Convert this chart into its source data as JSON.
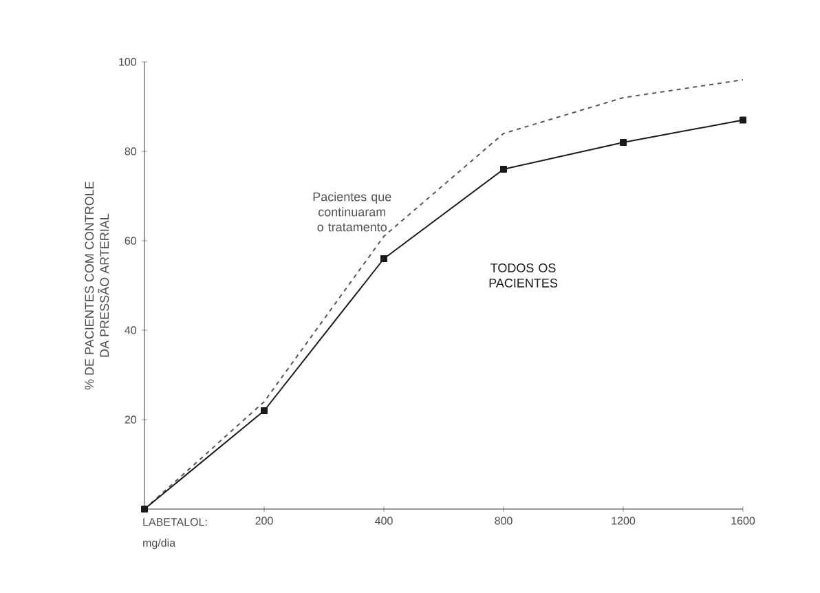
{
  "chart_data": {
    "type": "line",
    "ylabel": "% DE PACIENTES COM CONTROLE DA PRESSÃO ARTERIAL",
    "xlabel": "mg/dia",
    "annotations": [
      "LABETALOL:"
    ],
    "categories": [
      null,
      "200",
      "400",
      "800",
      "1200",
      "1600"
    ],
    "ylim": [
      0,
      100
    ],
    "yticks": [
      20,
      40,
      60,
      80,
      100
    ],
    "series": [
      {
        "name": "Pacientes que continuaram o tratamento",
        "color": "#555555",
        "line_style": "dashed",
        "marker": "none",
        "values": [
          0,
          24,
          61,
          84,
          92,
          96
        ]
      },
      {
        "name": "TODOS OS PACIENTES",
        "color": "#1a1a1a",
        "line_style": "solid",
        "marker": "square",
        "values": [
          0,
          22,
          56,
          76,
          82,
          87
        ]
      }
    ]
  }
}
